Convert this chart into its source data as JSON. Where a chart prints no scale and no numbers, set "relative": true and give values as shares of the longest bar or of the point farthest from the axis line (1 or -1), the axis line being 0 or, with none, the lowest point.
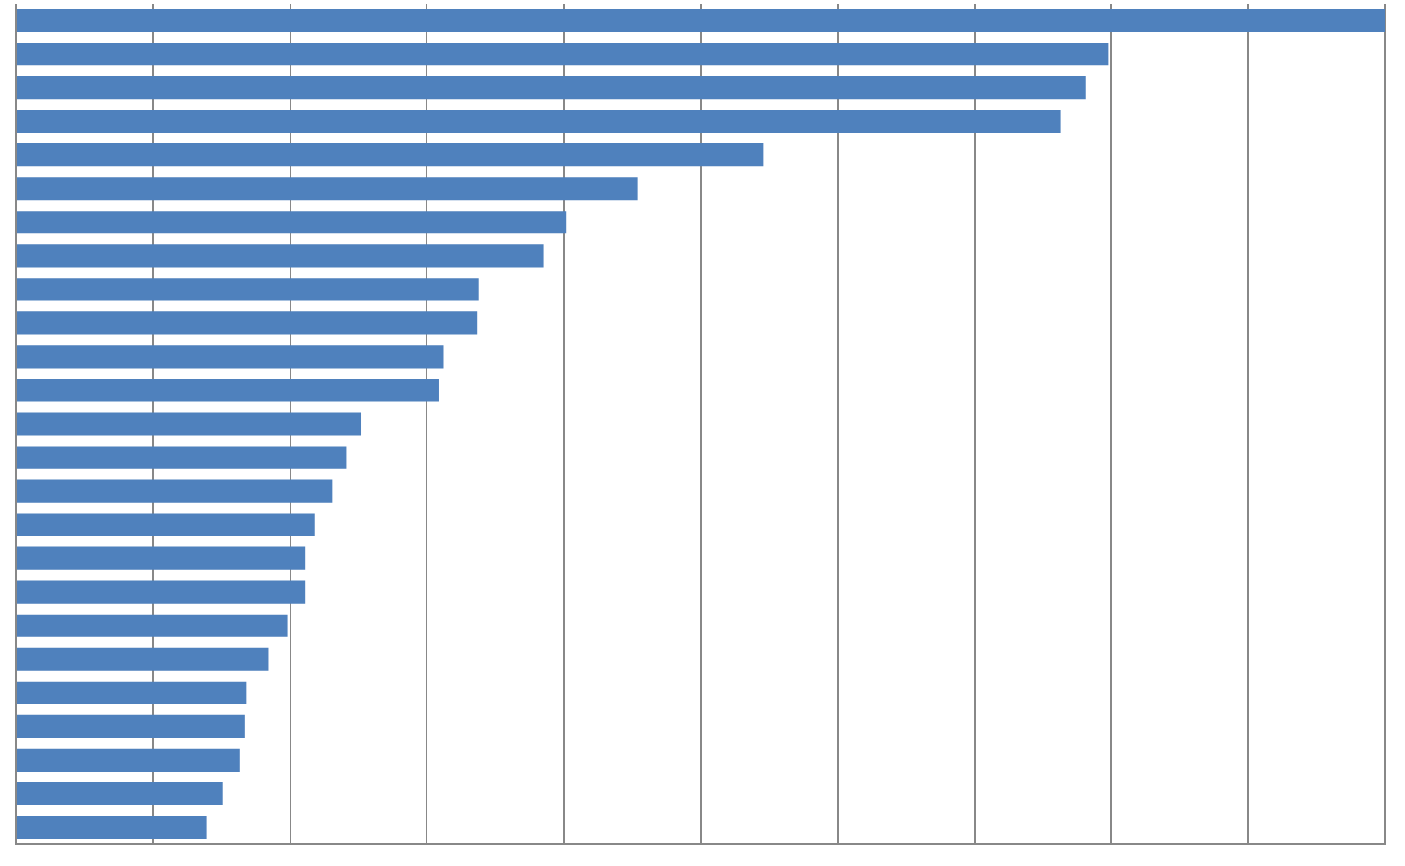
{
  "chart_data": {
    "type": "bar",
    "orientation": "horizontal",
    "relative": true,
    "grid": "x",
    "color": "#4f81bd",
    "categories": [
      null,
      null,
      null,
      null,
      null,
      null,
      null,
      null,
      null,
      null,
      null,
      null,
      null,
      null,
      null,
      null,
      null,
      null,
      null,
      null,
      null,
      null,
      null,
      null,
      null
    ],
    "values": [
      1,
      0.798,
      0.781,
      0.763,
      0.546,
      0.454,
      0.402,
      0.385,
      0.338,
      0.337,
      0.312,
      0.309,
      0.252,
      0.241,
      0.231,
      0.218,
      0.211,
      0.211,
      0.198,
      0.184,
      0.168,
      0.167,
      0.163,
      0.151,
      0.139
    ]
  }
}
